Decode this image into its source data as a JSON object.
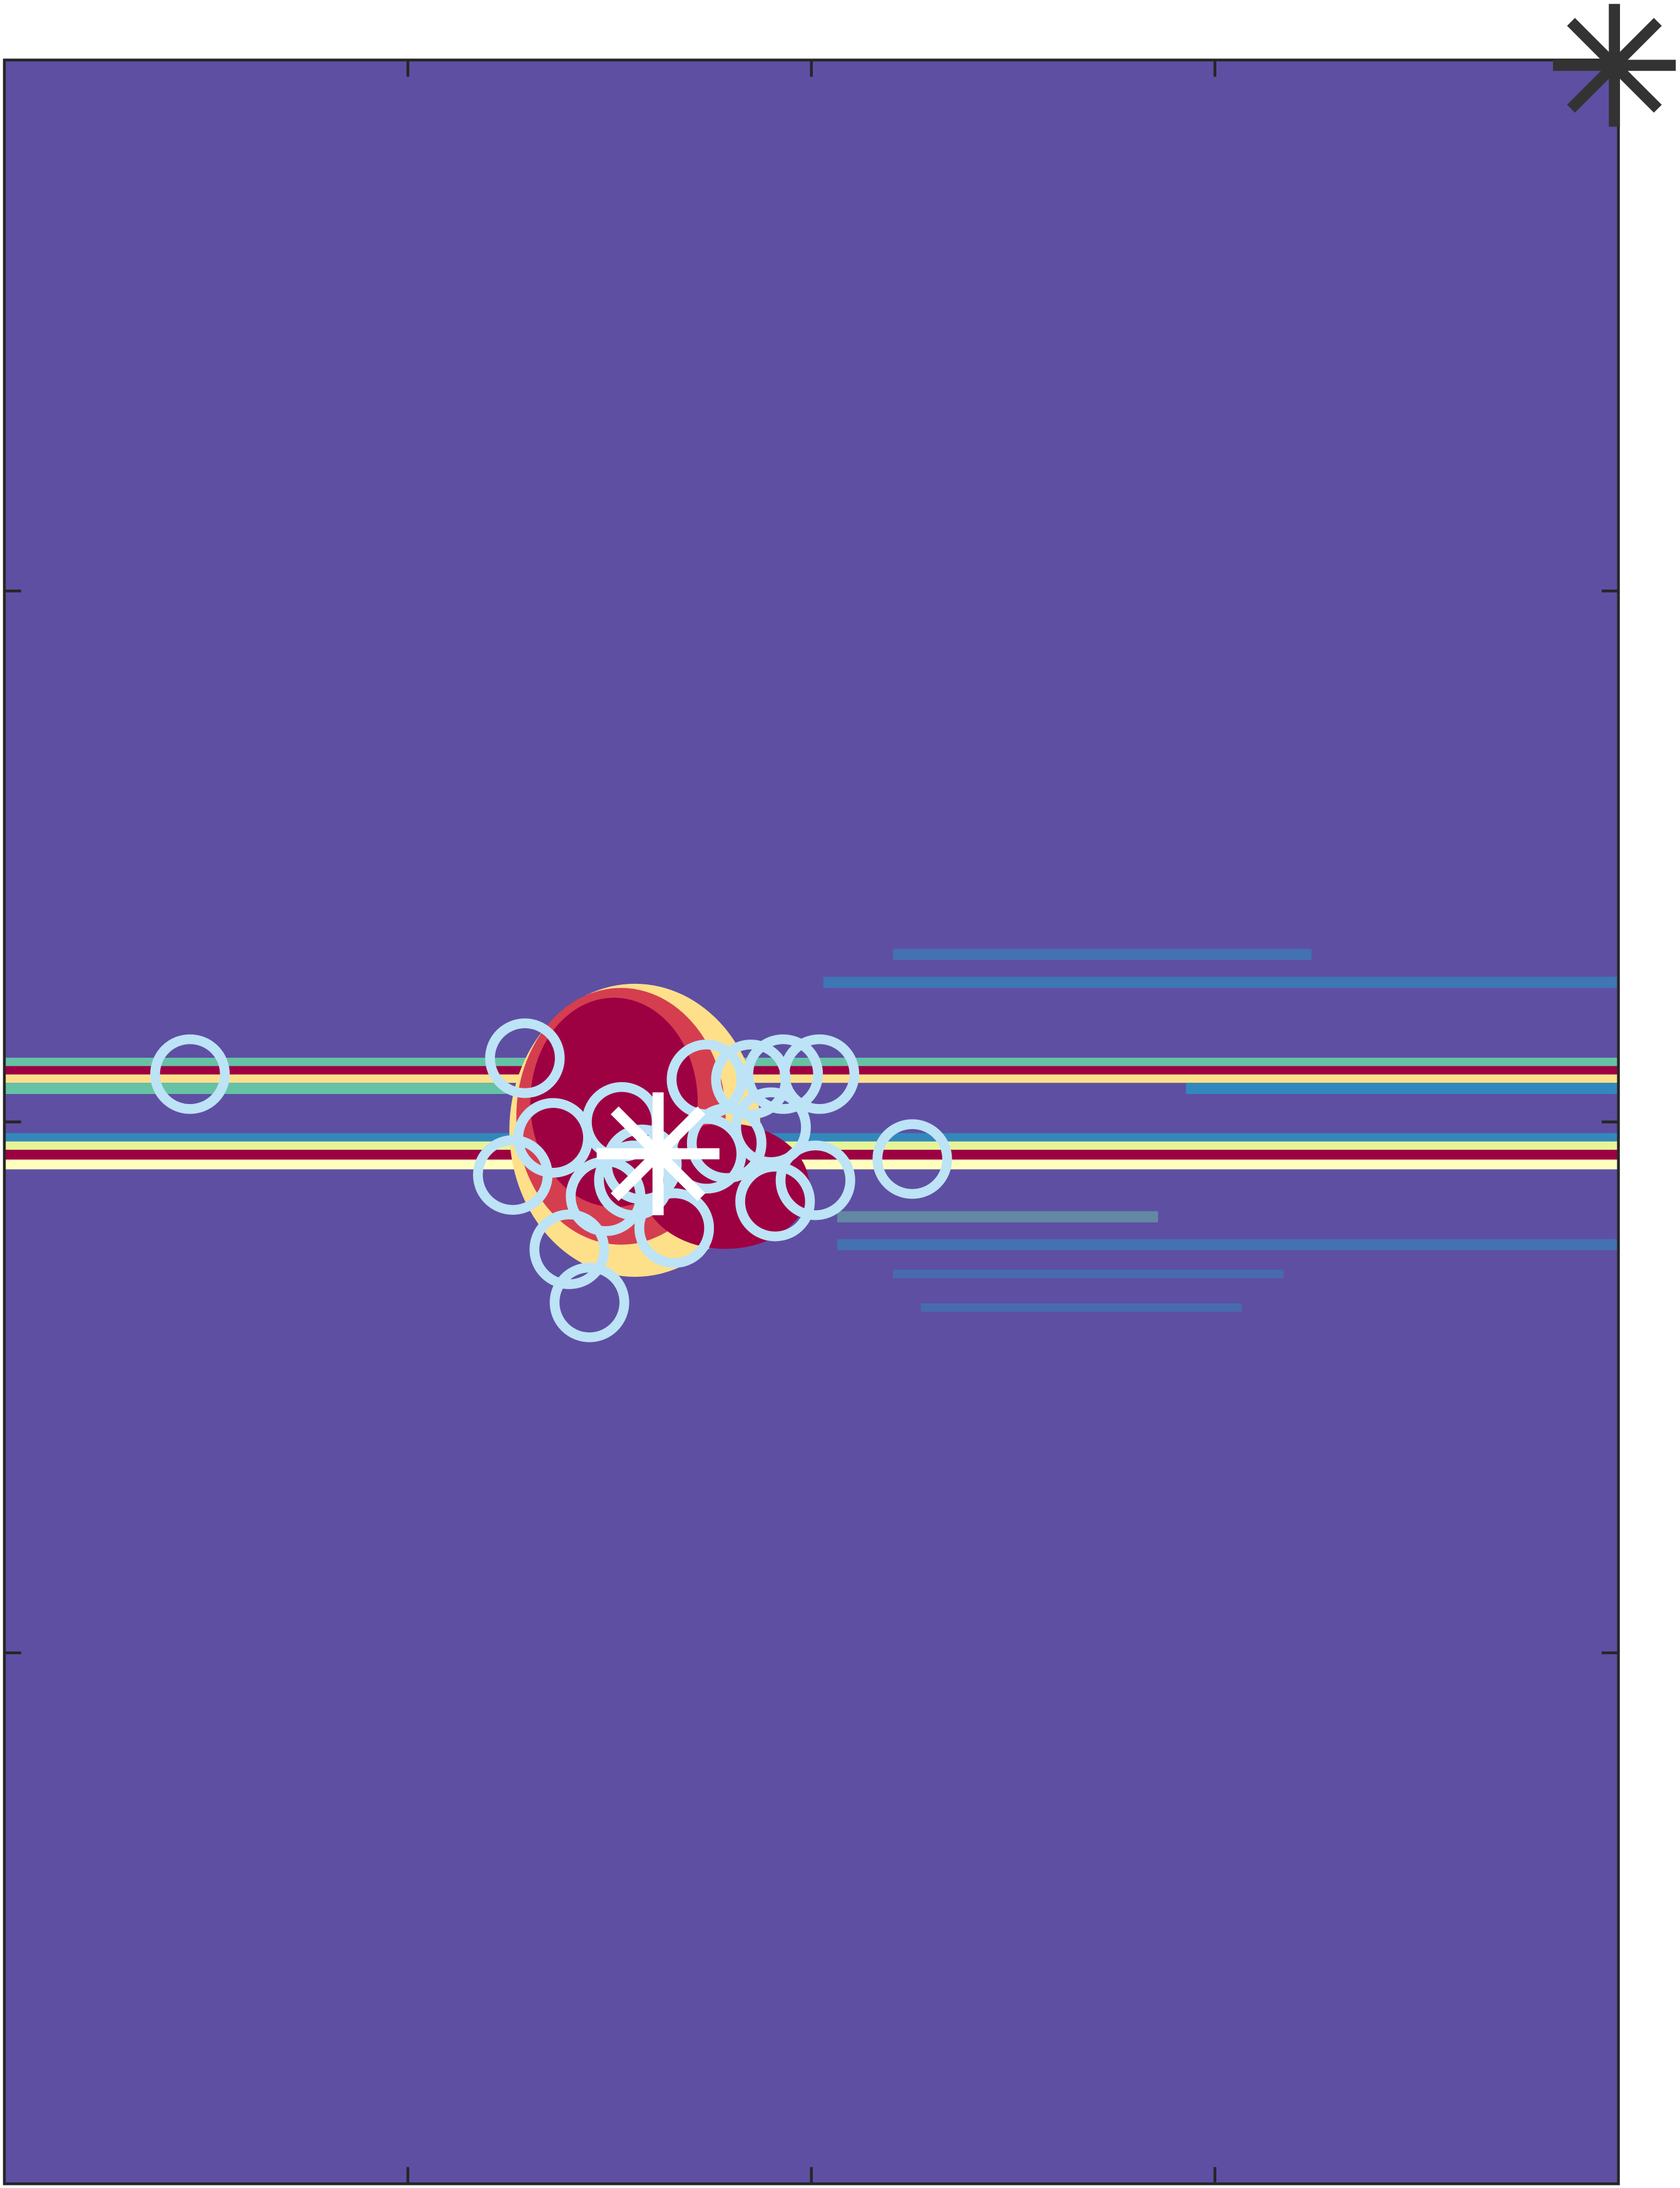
{
  "chart_data": {
    "type": "scatter",
    "xlim": [
      0,
      4
    ],
    "ylim": [
      0,
      4
    ],
    "xticks": [
      1,
      2,
      3
    ],
    "yticks": [
      1,
      2,
      3
    ],
    "series": [
      {
        "marker": "circle",
        "color": "#bde3f6",
        "x": [
          0.46,
          1.29,
          1.36,
          1.26,
          1.53,
          1.49,
          1.58,
          1.74,
          1.85,
          1.93,
          2.02,
          1.9,
          1.74,
          2.01,
          1.91,
          1.66,
          1.4,
          1.45,
          2.25,
          1.79,
          1.56
        ],
        "y": [
          2.09,
          2.12,
          1.97,
          1.9,
          2.0,
          1.86,
          1.92,
          2.08,
          2.08,
          2.09,
          2.09,
          1.99,
          1.94,
          1.89,
          1.85,
          1.8,
          1.76,
          1.66,
          1.93,
          1.96,
          1.89
        ]
      },
      {
        "marker": "asterisk",
        "color": "#ffffff",
        "x": [
          1.62
        ],
        "y": [
          1.94
        ]
      },
      {
        "marker": "asterisk",
        "color": "#333333",
        "x": [
          3.99
        ],
        "y": [
          3.99
        ]
      }
    ]
  }
}
